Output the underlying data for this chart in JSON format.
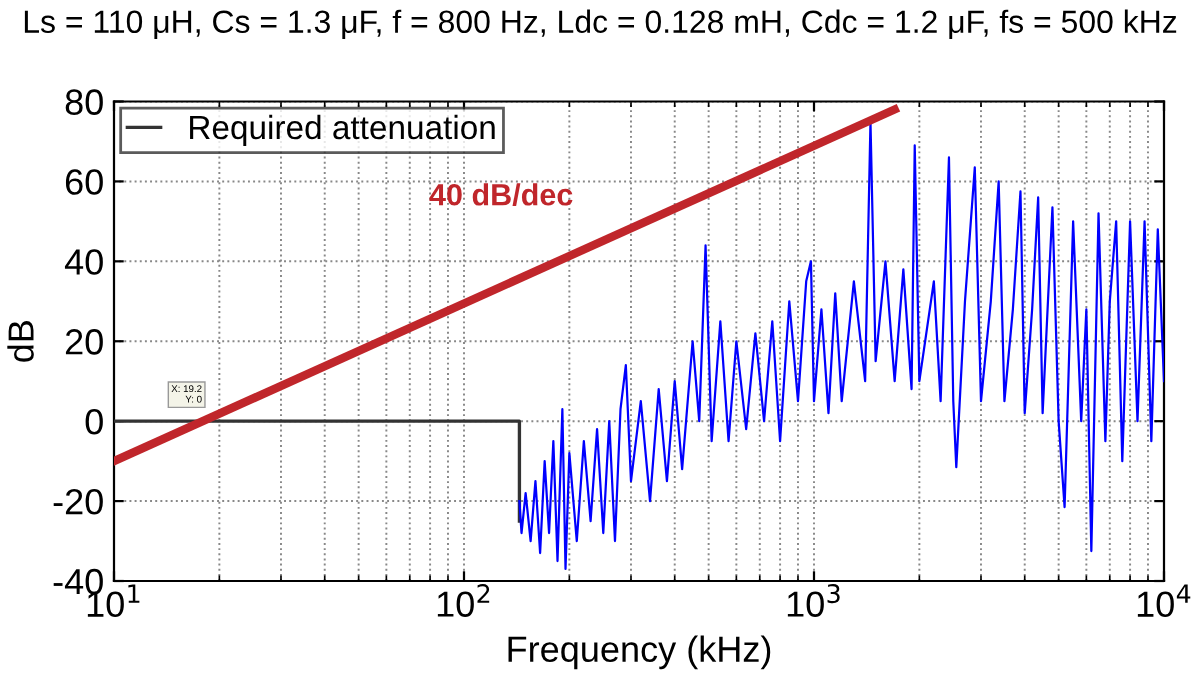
{
  "chart_data": {
    "type": "line",
    "title": "Ls = 110 μH, Cs = 1.3 μF, f = 800 Hz, Ldc = 0.128 mH, Cdc = 1.2 μF, fs = 500 kHz",
    "xlabel": "Frequency (kHz)",
    "ylabel": "dB",
    "log": "x",
    "xlim": [
      10,
      10000
    ],
    "ylim": [
      -40,
      80
    ],
    "xticks": [
      {
        "value": 10,
        "label": "10$^{1}$"
      },
      {
        "value": 100,
        "label": "10$^{2}$"
      },
      {
        "value": 1000,
        "label": "10$^{3}$"
      },
      {
        "value": 10000,
        "label": "10$^{4}$"
      }
    ],
    "yticks": [
      -40,
      -20,
      0,
      20,
      40,
      60,
      80
    ],
    "grid": true,
    "legend": "top left",
    "marker": "none",
    "line_style": "solid",
    "annotations": [
      "40 dB/dec",
      {
        "text": "X: 19.2\nY: 0",
        "x": 19.2,
        "y": 0
      }
    ],
    "series": [
      {
        "name": "Required attenuation",
        "color": "#333333",
        "x": [
          10,
          144,
          144
        ],
        "values": [
          0,
          0,
          -25
        ]
      },
      {
        "color": "#0000ff",
        "x": [
          144,
          146,
          150,
          155,
          160,
          165,
          170,
          175,
          180,
          185,
          191,
          195,
          200,
          210,
          220,
          230,
          240,
          250,
          260,
          270,
          280,
          290,
          300,
          320,
          340,
          360,
          380,
          400,
          420,
          450,
          470,
          490,
          510,
          540,
          570,
          600,
          640,
          680,
          720,
          760,
          800,
          850,
          900,
          950,
          980,
          1000,
          1050,
          1100,
          1150,
          1200,
          1300,
          1400,
          1450,
          1500,
          1600,
          1700,
          1800,
          1900,
          1940,
          2000,
          2200,
          2300,
          2430,
          2500,
          2550,
          2700,
          2880,
          3000,
          3200,
          3370,
          3500,
          3700,
          3890,
          4000,
          4200,
          4370,
          4500,
          4800,
          5000,
          5200,
          5500,
          5800,
          6000,
          6200,
          6500,
          6800,
          7000,
          7300,
          7600,
          8000,
          8400,
          8800,
          9200,
          9600,
          10000
        ],
        "values": [
          -20,
          -28,
          -18,
          -30,
          -15,
          -33,
          -10,
          -28,
          -5,
          -35,
          3,
          -37,
          -8,
          -30,
          -5,
          -25,
          -2,
          -28,
          0,
          -30,
          3,
          14,
          -15,
          5,
          -20,
          8,
          -15,
          10,
          -12,
          20,
          0,
          44,
          -5,
          25,
          -5,
          20,
          -2,
          22,
          0,
          25,
          -5,
          30,
          5,
          35,
          40,
          5,
          28,
          2,
          32,
          5,
          35,
          10,
          75,
          15,
          40,
          10,
          38,
          8,
          69,
          10,
          35,
          5,
          66,
          5,
          -11.5,
          30,
          63.5,
          5,
          30,
          60,
          5,
          28,
          57.5,
          2,
          28,
          56,
          2,
          53.5,
          0,
          -21.5,
          50,
          0,
          28,
          -32.5,
          52,
          -5,
          30,
          50,
          -10,
          50,
          0,
          50,
          -5,
          48,
          10
        ]
      },
      {
        "color": "#c0262b",
        "x": [
          10,
          1700
        ],
        "values": [
          -10,
          78
        ]
      }
    ]
  }
}
